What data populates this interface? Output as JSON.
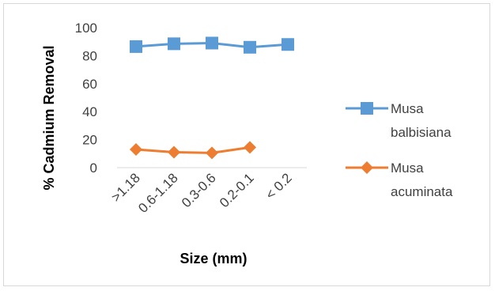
{
  "chart_data": {
    "type": "line",
    "categories": [
      ">1.18",
      "0.6-1.18",
      "0.3-0.6",
      "0.2-0.1",
      "< 0.2"
    ],
    "series": [
      {
        "name": "Musa balbisiana",
        "name_lines": [
          "Musa",
          "balbisiana"
        ],
        "values": [
          86.5,
          88.5,
          89,
          86,
          88
        ],
        "color": "#5b9bd5",
        "marker": "square"
      },
      {
        "name": "Musa acuminata",
        "name_lines": [
          "Musa",
          "acuminata"
        ],
        "values": [
          13,
          11,
          10.5,
          14.5,
          null
        ],
        "color": "#ed7d31",
        "marker": "diamond"
      }
    ],
    "title": "",
    "xlabel": "Size (mm)",
    "ylabel": "% Cadmium Removal",
    "ylim": [
      0,
      100
    ],
    "yticks": [
      0,
      20,
      40,
      60,
      80,
      100
    ],
    "grid": false,
    "legend_position": "right"
  }
}
